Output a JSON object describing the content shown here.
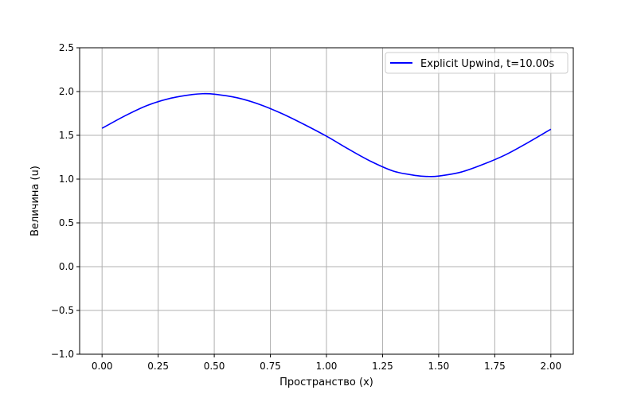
{
  "chart_data": {
    "type": "line",
    "title": "",
    "xlabel": "Пространство (x)",
    "ylabel": "Величина (u)",
    "xlim": [
      -0.1,
      2.1
    ],
    "ylim": [
      -1.0,
      2.5
    ],
    "x_ticks": [
      0.0,
      0.25,
      0.5,
      0.75,
      1.0,
      1.25,
      1.5,
      1.75,
      2.0
    ],
    "x_tick_labels": [
      "0.00",
      "0.25",
      "0.50",
      "0.75",
      "1.00",
      "1.25",
      "1.50",
      "1.75",
      "2.00"
    ],
    "y_ticks": [
      -1.0,
      -0.5,
      0.0,
      0.5,
      1.0,
      1.5,
      2.0,
      2.5
    ],
    "y_tick_labels": [
      "−1.0",
      "−0.5",
      "0.0",
      "0.5",
      "1.0",
      "1.5",
      "2.0",
      "2.5"
    ],
    "grid": true,
    "legend_position": "top-right",
    "series": [
      {
        "name": "Explicit Upwind, t=10.00s",
        "color": "#0000ff",
        "x": [
          0.0,
          0.1,
          0.2,
          0.3,
          0.4,
          0.45,
          0.5,
          0.6,
          0.7,
          0.8,
          0.9,
          1.0,
          1.1,
          1.2,
          1.3,
          1.4,
          1.45,
          1.5,
          1.6,
          1.7,
          1.8,
          1.9,
          2.0
        ],
        "y": [
          1.58,
          1.72,
          1.84,
          1.92,
          1.965,
          1.975,
          1.97,
          1.93,
          1.855,
          1.75,
          1.625,
          1.49,
          1.34,
          1.2,
          1.09,
          1.04,
          1.03,
          1.035,
          1.08,
          1.17,
          1.28,
          1.42,
          1.57
        ]
      }
    ]
  }
}
